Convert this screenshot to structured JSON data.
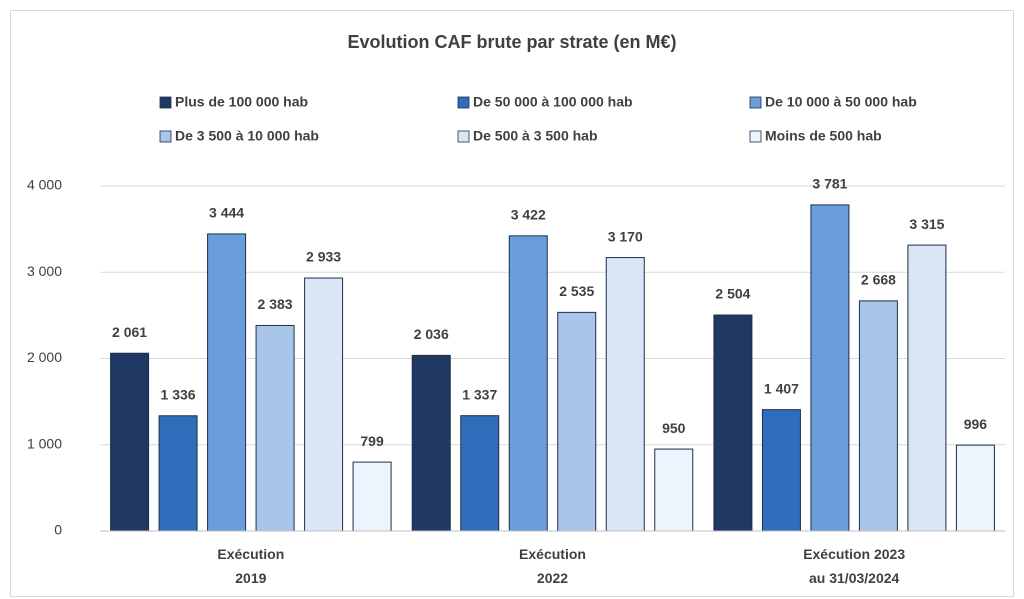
{
  "chart_data": {
    "type": "bar",
    "title": "Evolution CAF brute par strate (en M€)",
    "categories": [
      "Exécution\n2019",
      "Exécution\n2022",
      "Exécution 2023\nau 31/03/2024"
    ],
    "series": [
      {
        "name": "Plus de 100 000 hab",
        "color": "#203864",
        "values": [
          2061,
          2036,
          2504
        ],
        "value_labels": [
          "2 061",
          "2 036",
          "2 504"
        ]
      },
      {
        "name": "De 50 000 à 100 000 hab",
        "color": "#2e6dba",
        "values": [
          1336,
          1337,
          1407
        ],
        "value_labels": [
          "1 336",
          "1 337",
          "1 407"
        ]
      },
      {
        "name": "De 10 000 à 50 000 hab",
        "color": "#6a9edb",
        "values": [
          3444,
          3422,
          3781
        ],
        "value_labels": [
          "3 444",
          "3 422",
          "3 781"
        ]
      },
      {
        "name": "De 3 500 à 10 000 hab",
        "color": "#a9c6ea",
        "values": [
          2383,
          2535,
          2668
        ],
        "value_labels": [
          "2 383",
          "2 535",
          "2 668"
        ]
      },
      {
        "name": "De 500 à 3 500 hab",
        "color": "#dae6f6",
        "values": [
          2933,
          3170,
          3315
        ],
        "value_labels": [
          "2 933",
          "3 170",
          "3 315"
        ]
      },
      {
        "name": "Moins de 500 hab",
        "color": "#eaf5fd",
        "values": [
          799,
          950,
          996
        ],
        "value_labels": [
          "799",
          "950",
          "996"
        ]
      }
    ],
    "ylim": [
      0,
      4000
    ],
    "yticks": [
      0,
      {
        "value": 1000,
        "label": "1 000"
      },
      {
        "value": 2000,
        "label": "2 000"
      },
      {
        "value": 3000,
        "label": "3 000"
      },
      {
        "value": 4000,
        "label": "4 000"
      }
    ],
    "grid": true
  }
}
